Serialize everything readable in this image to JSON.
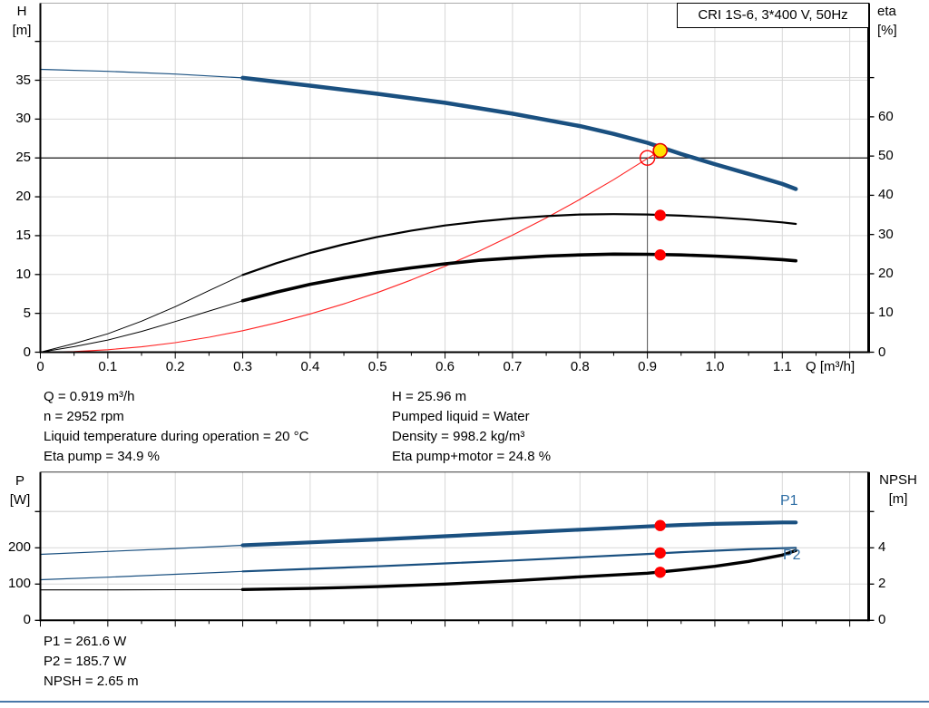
{
  "page": {
    "background": "#FFFFFF",
    "footer_rule_color": "#4878A8"
  },
  "colors": {
    "grid": "#D8D8D8",
    "axis": "#000000",
    "pump_curve_blue": "#1A5080",
    "curve_label_blue": "#2E6DA4",
    "marker_red": "#FF0000",
    "duty_yellow": "#FFE100",
    "system_curve_red": "#FF2222",
    "eta_curve_black": "#000000"
  },
  "results": {
    "left_column": [
      "Q = 0.919 m³/h",
      "n = 2952 rpm",
      "Liquid temperature during operation = 20 °C",
      "Eta pump = 34.9 %"
    ],
    "right_column": [
      "H = 25.96 m",
      "Pumped liquid = Water",
      "Density = 998.2 kg/m³",
      "Eta pump+motor = 24.8 %"
    ],
    "bottom": [
      "P1 = 261.6 W",
      "P2 = 185.7 W",
      "NPSH = 2.65 m"
    ]
  },
  "chart_data": [
    {
      "type": "line",
      "title": "CRI 1S-6, 3*400 V, 50Hz",
      "x_axis": {
        "label": "Q [m³/h]",
        "min": 0,
        "max": 1.228,
        "major_tick_step": 0.1,
        "minor_tick_step": 0.05,
        "tick_labels": [
          "0",
          "0.1",
          "0.2",
          "0.3",
          "0.4",
          "0.5",
          "0.6",
          "0.7",
          "0.8",
          "0.9",
          "1.0",
          "1.1"
        ]
      },
      "y_left": {
        "label_lines": [
          "H",
          "[m]"
        ],
        "unit": "m",
        "min": 0,
        "max": 44.9,
        "ticks": [
          0,
          5,
          10,
          15,
          20,
          25,
          30,
          35
        ],
        "extra_gridlines": [
          40
        ]
      },
      "y_right": {
        "label_lines": [
          "eta",
          "[%]"
        ],
        "unit": "%",
        "min": 0,
        "max": 89,
        "ticks": [
          0,
          10,
          20,
          30,
          40,
          50,
          60
        ],
        "extra_gridlines": [
          70
        ]
      },
      "duty_point": {
        "q": 0.9,
        "h": 25
      },
      "series": [
        {
          "name": "system-curve",
          "axis": "left",
          "color": "#FF2222",
          "thin_width": 1.1,
          "thick_width": 1.1,
          "thick_from": 2,
          "points": [
            [
              0,
              0
            ],
            [
              0.05,
              0.08
            ],
            [
              0.1,
              0.31
            ],
            [
              0.15,
              0.69
            ],
            [
              0.2,
              1.23
            ],
            [
              0.25,
              1.92
            ],
            [
              0.3,
              2.77
            ],
            [
              0.35,
              3.77
            ],
            [
              0.4,
              4.92
            ],
            [
              0.45,
              6.22
            ],
            [
              0.5,
              7.68
            ],
            [
              0.55,
              9.3
            ],
            [
              0.6,
              11.06
            ],
            [
              0.65,
              12.98
            ],
            [
              0.7,
              15.06
            ],
            [
              0.75,
              17.28
            ],
            [
              0.8,
              19.67
            ],
            [
              0.85,
              22.2
            ],
            [
              0.9,
              24.93
            ],
            [
              0.919,
              25.96
            ]
          ]
        },
        {
          "name": "eta-pump-curve",
          "axis": "right",
          "color": "#000000",
          "thin_width": 1,
          "thick_width": 2.2,
          "thick_from": 0.3,
          "points": [
            [
              0,
              0
            ],
            [
              0.05,
              2.2
            ],
            [
              0.1,
              4.7
            ],
            [
              0.15,
              7.9
            ],
            [
              0.2,
              11.6
            ],
            [
              0.25,
              15.7
            ],
            [
              0.3,
              19.7
            ],
            [
              0.35,
              22.7
            ],
            [
              0.4,
              25.3
            ],
            [
              0.45,
              27.5
            ],
            [
              0.5,
              29.4
            ],
            [
              0.55,
              31.0
            ],
            [
              0.6,
              32.3
            ],
            [
              0.65,
              33.3
            ],
            [
              0.7,
              34.1
            ],
            [
              0.75,
              34.7
            ],
            [
              0.8,
              35.1
            ],
            [
              0.85,
              35.2
            ],
            [
              0.9,
              35.1
            ],
            [
              0.95,
              34.8
            ],
            [
              1.0,
              34.4
            ],
            [
              1.05,
              33.8
            ],
            [
              1.1,
              33.1
            ],
            [
              1.12,
              32.7
            ]
          ]
        },
        {
          "name": "eta-pump-motor-curve",
          "axis": "right",
          "color": "#000000",
          "thin_width": 1,
          "thick_width": 3.6,
          "thick_from": 0.3,
          "points": [
            [
              0,
              0
            ],
            [
              0.05,
              1.4
            ],
            [
              0.1,
              3.1
            ],
            [
              0.15,
              5.3
            ],
            [
              0.2,
              7.8
            ],
            [
              0.25,
              10.5
            ],
            [
              0.3,
              13.1
            ],
            [
              0.35,
              15.3
            ],
            [
              0.4,
              17.3
            ],
            [
              0.45,
              18.9
            ],
            [
              0.5,
              20.3
            ],
            [
              0.55,
              21.5
            ],
            [
              0.6,
              22.5
            ],
            [
              0.65,
              23.4
            ],
            [
              0.7,
              24.0
            ],
            [
              0.75,
              24.5
            ],
            [
              0.8,
              24.8
            ],
            [
              0.85,
              25.0
            ],
            [
              0.9,
              24.95
            ],
            [
              0.95,
              24.8
            ],
            [
              1.0,
              24.5
            ],
            [
              1.05,
              24.1
            ],
            [
              1.1,
              23.6
            ],
            [
              1.12,
              23.3
            ]
          ]
        },
        {
          "name": "pump-qh-curve",
          "axis": "left",
          "color": "#1A5080",
          "thin_width": 1.2,
          "thick_width": 4.5,
          "thick_from": 0.3,
          "points": [
            [
              0,
              36.4
            ],
            [
              0.1,
              36.15
            ],
            [
              0.2,
              35.8
            ],
            [
              0.3,
              35.3
            ],
            [
              0.4,
              34.3
            ],
            [
              0.5,
              33.25
            ],
            [
              0.6,
              32.1
            ],
            [
              0.7,
              30.7
            ],
            [
              0.8,
              29.1
            ],
            [
              0.85,
              28.1
            ],
            [
              0.9,
              26.95
            ],
            [
              0.95,
              25.5
            ],
            [
              1.0,
              24.2
            ],
            [
              1.05,
              22.95
            ],
            [
              1.1,
              21.65
            ],
            [
              1.12,
              21.0
            ]
          ]
        }
      ],
      "markers": [
        {
          "name": "requested-duty-point",
          "type": "open-circle",
          "q": 0.9,
          "value": 25,
          "axis": "left",
          "color": "#FF0000"
        },
        {
          "name": "actual-duty-point",
          "type": "filled-circle",
          "q": 0.919,
          "value": 25.96,
          "axis": "left",
          "fill": "#FFE100",
          "stroke": "#E00000"
        },
        {
          "name": "eta-pump-marker",
          "type": "dot",
          "q": 0.919,
          "value": 34.9,
          "axis": "right",
          "fill": "#FF0000"
        },
        {
          "name": "eta-pump-motor-marker",
          "type": "dot",
          "q": 0.919,
          "value": 24.8,
          "axis": "right",
          "fill": "#FF0000"
        }
      ]
    },
    {
      "type": "line",
      "title": "",
      "x_axis": {
        "label": "",
        "min": 0,
        "max": 1.228,
        "major_tick_step": 0.1,
        "minor_tick_step": 0.05,
        "tick_labels": []
      },
      "y_left": {
        "label_lines": [
          "P",
          "[W]"
        ],
        "unit": "W",
        "min": 0,
        "max": 408,
        "ticks": [
          0,
          100,
          200
        ],
        "extra_gridlines": [
          300
        ]
      },
      "y_right": {
        "label_lines": [
          "NPSH",
          "[m]"
        ],
        "unit": "m",
        "min": 0,
        "max": 8.2,
        "ticks": [
          0,
          2,
          4
        ],
        "extra_gridlines": [
          6
        ]
      },
      "curve_labels": [
        "P1",
        "P2"
      ],
      "curve_label_color": "#2E6DA4",
      "series": [
        {
          "name": "p2-power-curve",
          "axis": "left",
          "color": "#1A5080",
          "thin_width": 1.2,
          "thick_width": 2.2,
          "thick_from": 0.3,
          "points": [
            [
              0,
              112
            ],
            [
              0.1,
              119
            ],
            [
              0.2,
              127
            ],
            [
              0.3,
              135
            ],
            [
              0.4,
              142
            ],
            [
              0.5,
              149
            ],
            [
              0.6,
              157
            ],
            [
              0.7,
              165
            ],
            [
              0.8,
              174
            ],
            [
              0.9,
              183
            ],
            [
              0.95,
              188
            ],
            [
              1.0,
              192
            ],
            [
              1.05,
              196
            ],
            [
              1.1,
              199
            ],
            [
              1.12,
              200
            ]
          ]
        },
        {
          "name": "p1-power-curve",
          "axis": "left",
          "color": "#1A5080",
          "thin_width": 1.2,
          "thick_width": 4.2,
          "thick_from": 0.3,
          "points": [
            [
              0,
              182
            ],
            [
              0.1,
              190
            ],
            [
              0.2,
              198
            ],
            [
              0.3,
              207
            ],
            [
              0.4,
              215
            ],
            [
              0.5,
              223
            ],
            [
              0.6,
              232
            ],
            [
              0.7,
              241
            ],
            [
              0.8,
              250
            ],
            [
              0.9,
              259
            ],
            [
              0.95,
              263
            ],
            [
              1.0,
              266
            ],
            [
              1.05,
              268
            ],
            [
              1.1,
              270
            ],
            [
              1.12,
              270
            ]
          ]
        },
        {
          "name": "npsh-curve",
          "axis": "right",
          "color": "#000000",
          "thin_width": 1.1,
          "thick_width": 3.4,
          "thick_from": 0.3,
          "points": [
            [
              0,
              1.68
            ],
            [
              0.1,
              1.68
            ],
            [
              0.2,
              1.69
            ],
            [
              0.3,
              1.7
            ],
            [
              0.4,
              1.76
            ],
            [
              0.5,
              1.86
            ],
            [
              0.6,
              2.0
            ],
            [
              0.7,
              2.18
            ],
            [
              0.8,
              2.4
            ],
            [
              0.9,
              2.6
            ],
            [
              0.95,
              2.78
            ],
            [
              1.0,
              2.98
            ],
            [
              1.05,
              3.25
            ],
            [
              1.1,
              3.6
            ],
            [
              1.12,
              3.85
            ]
          ]
        }
      ],
      "markers": [
        {
          "name": "p1-marker",
          "type": "dot",
          "q": 0.919,
          "value": 261.6,
          "axis": "left",
          "fill": "#FF0000"
        },
        {
          "name": "p2-marker",
          "type": "dot",
          "q": 0.919,
          "value": 185.7,
          "axis": "left",
          "fill": "#FF0000"
        },
        {
          "name": "npsh-marker",
          "type": "dot",
          "q": 0.919,
          "value": 2.65,
          "axis": "right",
          "fill": "#FF0000"
        }
      ]
    }
  ]
}
